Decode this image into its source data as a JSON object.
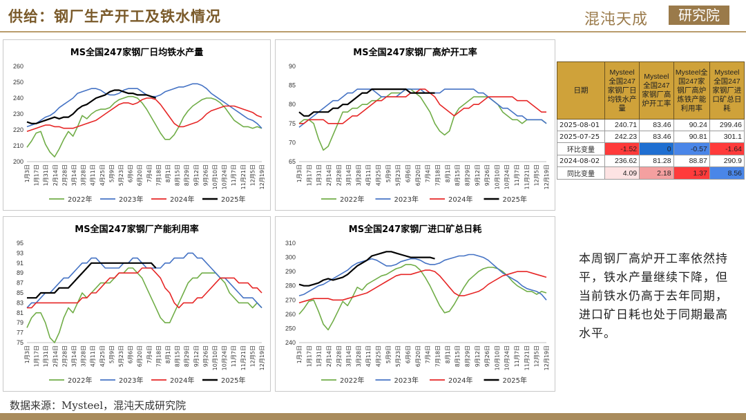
{
  "header": {
    "title": "供给：钢厂生产开工及铁水情况",
    "logo_text": "混沌天成",
    "logo_seal": "研究院"
  },
  "footer": {
    "source": "数据来源：Mysteel，混沌天成研究院"
  },
  "note": "本周钢厂高炉开工率依然持平，铁水产量继续下降，但当前铁水仍高于去年同期，进口矿日耗也处于同期最高水平。",
  "table": {
    "headers": [
      "日期",
      "Mysteel全国247家钢厂日均铁水产量",
      "Mysteel全国247家钢厂高炉开工率",
      "Mysteel全国247家钢厂高炉炼铁产能利用率",
      "Mysteel全国247家钢厂进口矿总日耗"
    ],
    "rows": [
      {
        "label": "2025-08-01",
        "values": [
          "240.71",
          "83.46",
          "90.24",
          "299.46"
        ]
      },
      {
        "label": "2025-07-25",
        "values": [
          "242.23",
          "83.46",
          "90.81",
          "301.1"
        ]
      },
      {
        "label": "环比变量",
        "values": [
          "-1.52",
          "0",
          "-0.57",
          "-1.64"
        ]
      },
      {
        "label": "2024-08-02",
        "values": [
          "236.62",
          "81.28",
          "88.87",
          "290.9"
        ]
      },
      {
        "label": "同比变量",
        "values": [
          "4.09",
          "2.18",
          "1.37",
          "8.56"
        ]
      }
    ]
  },
  "colors": {
    "y2022": "#70ad47",
    "y2023": "#4472c4",
    "y2024": "#e62525",
    "y2025": "#000000"
  },
  "chart_data": [
    {
      "type": "line",
      "title": "MS全国247家钢厂日均铁水产量",
      "ylim": [
        200,
        260
      ],
      "yticks": [
        200,
        210,
        220,
        230,
        240,
        250,
        260
      ],
      "x_ticks": [
        "1月3日",
        "1月17日",
        "1月31日",
        "2月14日",
        "2月28日",
        "3月14日",
        "3月28日",
        "4月11日",
        "4月25日",
        "5月9日",
        "5月23日",
        "6月6日",
        "6月20日",
        "7月4日",
        "7月18日",
        "8月1日",
        "8月15日",
        "8月29日",
        "9月12日",
        "9月26日",
        "10月10日",
        "10月24日",
        "11月7日",
        "11月21日",
        "12月5日",
        "12月19日"
      ],
      "legend": [
        "2022年",
        "2023年",
        "2024年",
        "2025年"
      ],
      "series": [
        {
          "name": "2022年",
          "values": [
            209,
            213,
            218,
            219,
            211,
            206,
            203,
            208,
            214,
            219,
            216,
            222,
            229,
            227,
            230,
            232,
            233,
            233,
            234,
            237,
            239,
            240,
            241,
            241,
            240,
            237,
            233,
            228,
            223,
            218,
            214,
            214,
            217,
            222,
            228,
            232,
            235,
            237,
            239,
            240,
            240,
            239,
            237,
            234,
            230,
            226,
            224,
            222,
            222,
            221,
            222,
            221
          ]
        },
        {
          "name": "2023年",
          "values": [
            222,
            223,
            224,
            226,
            228,
            229,
            231,
            234,
            236,
            238,
            240,
            243,
            244,
            245,
            246,
            246,
            245,
            243,
            242,
            242,
            243,
            245,
            246,
            246,
            246,
            244,
            242,
            241,
            241,
            242,
            244,
            245,
            246,
            247,
            247,
            248,
            249,
            249,
            248,
            246,
            243,
            241,
            239,
            237,
            235,
            233,
            231,
            229,
            227,
            226,
            224,
            221
          ]
        },
        {
          "name": "2024年",
          "values": [
            219,
            220,
            221,
            222,
            223,
            223,
            222,
            222,
            221,
            221,
            221,
            222,
            223,
            224,
            225,
            226,
            228,
            230,
            232,
            234,
            236,
            237,
            237,
            236,
            237,
            239,
            240,
            240,
            239,
            236,
            232,
            228,
            224,
            222,
            222,
            223,
            224,
            225,
            227,
            230,
            232,
            233,
            234,
            235,
            235,
            235,
            234,
            233,
            232,
            231,
            229,
            228
          ]
        },
        {
          "name": "2025年",
          "values": [
            225,
            224,
            224,
            225,
            226,
            227,
            228,
            227,
            228,
            228,
            230,
            233,
            235,
            236,
            238,
            240,
            241,
            242,
            244,
            245,
            245,
            244,
            243,
            243,
            242,
            242,
            242,
            241,
            240
          ]
        }
      ]
    },
    {
      "type": "line",
      "title": "MS全国247家钢厂高炉开工率",
      "ylim": [
        65,
        90
      ],
      "yticks": [
        65,
        70,
        75,
        80,
        85,
        90
      ],
      "x_ticks": [
        "1月3日",
        "1月17日",
        "1月31日",
        "2月14日",
        "2月28日",
        "3月14日",
        "3月28日",
        "4月11日",
        "4月25日",
        "5月9日",
        "5月23日",
        "6月6日",
        "6月20日",
        "7月4日",
        "7月18日",
        "8月1日",
        "8月15日",
        "8月29日",
        "9月12日",
        "9月26日",
        "10月10日",
        "10月24日",
        "11月7日",
        "11月21日",
        "12月5日",
        "12月19日"
      ],
      "legend": [
        "2022年",
        "2023年",
        "2024年",
        "2025年"
      ],
      "series": [
        {
          "name": "2022年",
          "values": [
            75,
            76,
            76,
            75,
            71,
            68,
            69,
            72,
            75,
            78,
            78,
            79,
            79,
            80,
            80,
            81,
            81,
            82,
            82,
            83,
            83,
            83,
            84,
            84,
            83,
            82,
            80,
            78,
            75,
            73,
            72,
            73,
            77,
            79,
            80,
            81,
            82,
            82,
            82,
            82,
            81,
            80,
            78,
            77,
            76,
            76,
            75,
            76,
            76,
            76,
            76,
            75
          ]
        },
        {
          "name": "2023年",
          "values": [
            74,
            75,
            76,
            77,
            78,
            79,
            80,
            81,
            81,
            82,
            83,
            83,
            84,
            84,
            84,
            84,
            83,
            82,
            82,
            82,
            82,
            83,
            84,
            84,
            84,
            84,
            83,
            83,
            83,
            83,
            84,
            84,
            84,
            84,
            84,
            84,
            84,
            83,
            83,
            82,
            81,
            80,
            79,
            79,
            78,
            77,
            77,
            76,
            76,
            76,
            76,
            75
          ]
        },
        {
          "name": "2024年",
          "values": [
            75,
            75,
            76,
            76,
            76,
            76,
            75,
            75,
            75,
            75,
            76,
            77,
            77,
            78,
            79,
            80,
            81,
            81,
            82,
            82,
            82,
            82,
            82,
            83,
            83,
            84,
            84,
            83,
            82,
            80,
            79,
            78,
            77,
            78,
            79,
            79,
            80,
            80,
            81,
            82,
            82,
            82,
            82,
            82,
            82,
            81,
            81,
            81,
            80,
            79,
            78,
            78
          ]
        },
        {
          "name": "2025年",
          "values": [
            78,
            77,
            77,
            78,
            78,
            78,
            78,
            79,
            79,
            80,
            80,
            81,
            82,
            83,
            83,
            84,
            84,
            84,
            84,
            84,
            84,
            84,
            84,
            83,
            83,
            83,
            83,
            83,
            83
          ]
        }
      ]
    },
    {
      "type": "line",
      "title": "MS全国247家钢厂产能利用率",
      "ylim": [
        75,
        95
      ],
      "yticks": [
        75,
        77,
        79,
        81,
        83,
        85,
        87,
        89,
        91,
        93,
        95
      ],
      "x_ticks": [
        "1月3日",
        "1月17日",
        "1月31日",
        "2月14日",
        "2月28日",
        "3月14日",
        "3月28日",
        "4月11日",
        "4月25日",
        "5月9日",
        "5月23日",
        "6月6日",
        "6月20日",
        "7月4日",
        "7月18日",
        "8月1日",
        "8月15日",
        "8月29日",
        "9月12日",
        "9月26日",
        "10月10日",
        "10月24日",
        "11月7日",
        "11月21日",
        "12月5日",
        "12月19日"
      ],
      "legend": [
        "2022年",
        "2023年",
        "2024年",
        "2025年"
      ],
      "series": [
        {
          "name": "2022年",
          "values": [
            78,
            80,
            81,
            81,
            79,
            76,
            75,
            77,
            80,
            82,
            81,
            83,
            85,
            84,
            85,
            86,
            87,
            87,
            87,
            88,
            89,
            89,
            90,
            90,
            89,
            88,
            86,
            84,
            82,
            80,
            79,
            79,
            81,
            83,
            85,
            87,
            88,
            88,
            89,
            89,
            89,
            89,
            88,
            87,
            85,
            84,
            83,
            83,
            83,
            82,
            83,
            82
          ]
        },
        {
          "name": "2023年",
          "values": [
            82,
            83,
            83,
            84,
            85,
            85,
            86,
            87,
            88,
            88,
            89,
            90,
            91,
            91,
            92,
            92,
            91,
            90,
            90,
            90,
            90,
            91,
            91,
            92,
            92,
            91,
            90,
            90,
            90,
            90,
            91,
            91,
            92,
            92,
            92,
            93,
            93,
            92,
            92,
            91,
            90,
            89,
            88,
            88,
            87,
            86,
            85,
            84,
            84,
            84,
            83,
            82
          ]
        },
        {
          "name": "2024年",
          "values": [
            82,
            82,
            83,
            83,
            83,
            83,
            83,
            83,
            83,
            83,
            83,
            83,
            84,
            84,
            85,
            85,
            86,
            87,
            88,
            88,
            89,
            89,
            89,
            89,
            89,
            90,
            90,
            90,
            89,
            88,
            86,
            85,
            83,
            82,
            83,
            83,
            83,
            84,
            84,
            85,
            86,
            87,
            88,
            88,
            88,
            88,
            87,
            87,
            87,
            86,
            86,
            85
          ]
        },
        {
          "name": "2025年",
          "values": [
            84,
            84,
            84,
            85,
            85,
            85,
            85,
            86,
            86,
            86,
            87,
            88,
            89,
            90,
            91,
            91,
            91,
            91,
            91,
            91,
            91,
            91,
            91,
            91,
            91,
            91,
            91,
            91,
            90
          ]
        }
      ]
    },
    {
      "type": "line",
      "title": "MS全国247家钢厂进口矿总日耗",
      "ylim": [
        240,
        310
      ],
      "yticks": [
        240,
        250,
        260,
        270,
        280,
        290,
        300,
        310
      ],
      "x_ticks": [
        "1月3日",
        "1月17日",
        "1月31日",
        "2月14日",
        "2月28日",
        "3月14日",
        "3月28日",
        "4月11日",
        "4月25日",
        "5月9日",
        "5月23日",
        "6月6日",
        "6月20日",
        "7月4日",
        "7月18日",
        "8月1日",
        "8月15日",
        "8月29日",
        "9月12日",
        "9月26日",
        "10月10日",
        "10月24日",
        "11月7日",
        "11月21日",
        "12月5日",
        "12月19日"
      ],
      "legend": [
        "2022年",
        "2023年",
        "2024年",
        "2025年"
      ],
      "series": [
        {
          "name": "2022年",
          "values": [
            260,
            264,
            269,
            270,
            262,
            253,
            249,
            255,
            262,
            269,
            266,
            272,
            279,
            277,
            281,
            283,
            285,
            287,
            288,
            290,
            292,
            293,
            295,
            295,
            294,
            291,
            286,
            280,
            273,
            266,
            261,
            262,
            267,
            273,
            279,
            284,
            287,
            290,
            292,
            293,
            293,
            292,
            290,
            287,
            283,
            280,
            278,
            276,
            276,
            274,
            276,
            275
          ]
        },
        {
          "name": "2023年",
          "values": [
            273,
            274,
            276,
            278,
            280,
            281,
            283,
            285,
            287,
            289,
            291,
            294,
            296,
            297,
            298,
            299,
            298,
            296,
            294,
            294,
            295,
            297,
            298,
            299,
            299,
            298,
            296,
            295,
            295,
            296,
            298,
            299,
            300,
            301,
            301,
            302,
            302,
            301,
            300,
            298,
            295,
            292,
            289,
            287,
            285,
            283,
            280,
            278,
            277,
            276,
            274,
            270
          ]
        },
        {
          "name": "2024年",
          "values": [
            268,
            269,
            270,
            271,
            271,
            271,
            271,
            270,
            270,
            270,
            271,
            272,
            273,
            274,
            275,
            277,
            279,
            281,
            283,
            285,
            287,
            288,
            288,
            288,
            289,
            290,
            291,
            291,
            290,
            287,
            283,
            279,
            275,
            273,
            273,
            274,
            275,
            276,
            278,
            281,
            283,
            285,
            287,
            288,
            289,
            290,
            290,
            290,
            289,
            288,
            287,
            286
          ]
        },
        {
          "name": "2025年",
          "values": [
            281,
            280,
            280,
            281,
            282,
            284,
            285,
            284,
            285,
            286,
            288,
            291,
            294,
            296,
            298,
            301,
            302,
            303,
            304,
            304,
            303,
            302,
            301,
            300,
            300,
            300,
            300,
            300,
            299
          ]
        }
      ]
    }
  ]
}
